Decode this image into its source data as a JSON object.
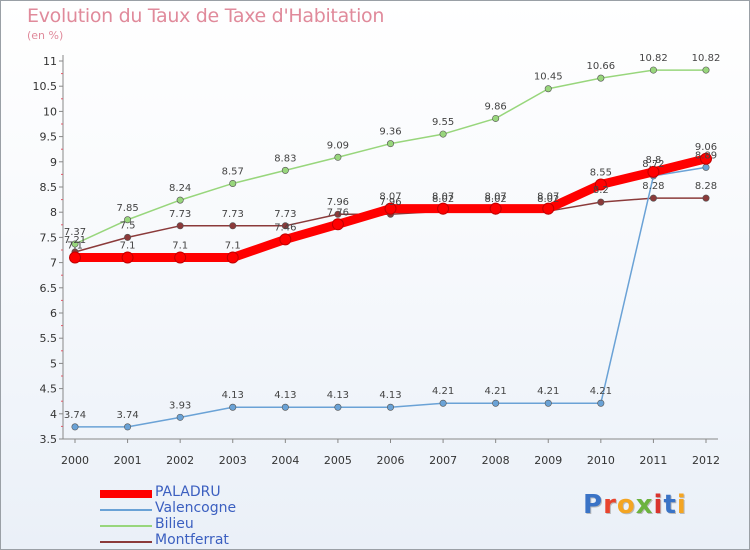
{
  "title": "Evolution du Taux de Taxe d'Habitation",
  "subtitle": "(en %)",
  "logo": {
    "text": "Proxiti",
    "colors": [
      "#3a73c6",
      "#e8442e",
      "#f4a522",
      "#6cb33e",
      "#d9332e",
      "#3a73c6",
      "#f4a522"
    ]
  },
  "chart_data": {
    "type": "line",
    "title": "Evolution du Taux de Taxe d'Habitation",
    "subtitle": "(en %)",
    "xlabel": "",
    "ylabel": "",
    "x": [
      "2000",
      "2001",
      "2002",
      "2003",
      "2004",
      "2005",
      "2006",
      "2007",
      "2008",
      "2009",
      "2010",
      "2011",
      "2012"
    ],
    "ylim": [
      3.5,
      11
    ],
    "yticks": [
      "3.5",
      "4",
      "4.5",
      "5",
      "5.5",
      "6",
      "6.5",
      "7",
      "7.5",
      "8",
      "8.5",
      "9",
      "9.5",
      "10",
      "10.5",
      "11"
    ],
    "grid": false,
    "legend_position": "bottom-left",
    "series": [
      {
        "name": "PALADRU",
        "color": "#ff0000",
        "values": [
          7.1,
          7.1,
          7.1,
          7.1,
          7.46,
          7.76,
          8.07,
          8.07,
          8.07,
          8.07,
          8.55,
          8.8,
          9.06
        ],
        "labels": [
          "7.1",
          "7.1",
          "7.1",
          "7.1",
          "7.46",
          "7.76",
          "8.07",
          "8.07",
          "8.07",
          "8.07",
          "8.55",
          "8.8",
          "9.06"
        ]
      },
      {
        "name": "Valencogne",
        "color": "#6aa2d6",
        "values": [
          3.74,
          3.74,
          3.93,
          4.13,
          4.13,
          4.13,
          4.13,
          4.21,
          4.21,
          4.21,
          4.21,
          8.72,
          8.89
        ],
        "labels": [
          "3.74",
          "3.74",
          "3.93",
          "4.13",
          "4.13",
          "4.13",
          "4.13",
          "4.21",
          "4.21",
          "4.21",
          "4.21",
          "8.72",
          "8.89"
        ]
      },
      {
        "name": "Bilieu",
        "color": "#98d67c",
        "values": [
          7.37,
          7.85,
          8.24,
          8.57,
          8.83,
          9.09,
          9.36,
          9.55,
          9.86,
          10.45,
          10.66,
          10.82,
          10.82
        ],
        "labels": [
          "7.37",
          "7.85",
          "8.24",
          "8.57",
          "8.83",
          "9.09",
          "9.36",
          "9.55",
          "9.86",
          "10.45",
          "10.66",
          "10.82",
          "10.82"
        ]
      },
      {
        "name": "Montferrat",
        "color": "#8b3a3a",
        "values": [
          7.21,
          7.5,
          7.73,
          7.73,
          7.73,
          7.96,
          7.96,
          8.02,
          8.02,
          8.02,
          8.2,
          8.28,
          8.28
        ],
        "labels": [
          "7.21",
          "7.5",
          "7.73",
          "7.73",
          "7.73",
          "7.96",
          "7.96",
          "8.02",
          "8.02",
          "8.02",
          "8.2",
          "8.28",
          "8.28"
        ]
      }
    ]
  }
}
